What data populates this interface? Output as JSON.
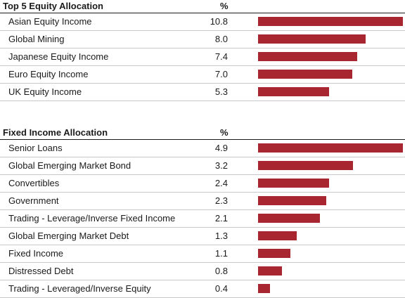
{
  "colors": {
    "bar": "#a8262f",
    "text": "#1a1a1a",
    "rule": "#c8c8c8"
  },
  "chart_data": [
    {
      "type": "bar",
      "orientation": "horizontal",
      "title": "Top 5 Equity Allocation",
      "unit": "%",
      "categories": [
        "Asian Equity Income",
        "Global Mining",
        "Japanese Equity Income",
        "Euro Equity Income",
        "UK Equity Income"
      ],
      "values": [
        10.8,
        8.0,
        7.4,
        7.0,
        5.3
      ],
      "value_labels": [
        "10.8",
        "8.0",
        "7.4",
        "7.0",
        "5.3"
      ],
      "xlim": [
        0,
        10.8
      ]
    },
    {
      "type": "bar",
      "orientation": "horizontal",
      "title": "Fixed Income Allocation",
      "unit": "%",
      "categories": [
        "Senior Loans",
        "Global Emerging Market Bond",
        "Convertibles",
        "Government",
        "Trading - Leverage/Inverse Fixed Income",
        "Global Emerging Market Debt",
        "Fixed Income",
        "Distressed Debt",
        "Trading - Leveraged/Inverse Equity"
      ],
      "values": [
        4.9,
        3.2,
        2.4,
        2.3,
        2.1,
        1.3,
        1.1,
        0.8,
        0.4
      ],
      "value_labels": [
        "4.9",
        "3.2",
        "2.4",
        "2.3",
        "2.1",
        "1.3",
        "1.1",
        "0.8",
        "0.4"
      ],
      "xlim": [
        0,
        4.9
      ]
    }
  ]
}
